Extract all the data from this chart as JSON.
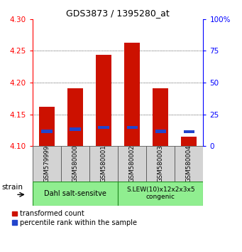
{
  "title": "GDS3873 / 1395280_at",
  "samples": [
    "GSM579999",
    "GSM580000",
    "GSM580001",
    "GSM580002",
    "GSM580003",
    "GSM580004"
  ],
  "red_values": [
    4.162,
    4.191,
    4.243,
    4.263,
    4.191,
    4.115
  ],
  "blue_values": [
    4.121,
    4.124,
    4.127,
    4.127,
    4.121,
    4.12
  ],
  "ymin": 4.1,
  "ymax": 4.3,
  "yticks_left": [
    4.1,
    4.15,
    4.2,
    4.25,
    4.3
  ],
  "yticks_right": [
    0,
    25,
    50,
    75,
    100
  ],
  "ytick_labels_right": [
    "0",
    "25",
    "50",
    "75",
    "100%"
  ],
  "red_bar_width": 0.55,
  "blue_bar_width": 0.55,
  "blue_bar_height": 0.005,
  "red_color": "#cc1100",
  "blue_color": "#2244cc",
  "bg_color": "#d3d3d3",
  "green_color": "#90ee90",
  "green_edge": "#228B22",
  "group1_label": "Dahl salt-sensitve",
  "group2_label": "S.LEW(10)x12x2x3x5\ncongenic",
  "legend_red": "transformed count",
  "legend_blue": "percentile rank within the sample",
  "strain_label": "strain"
}
